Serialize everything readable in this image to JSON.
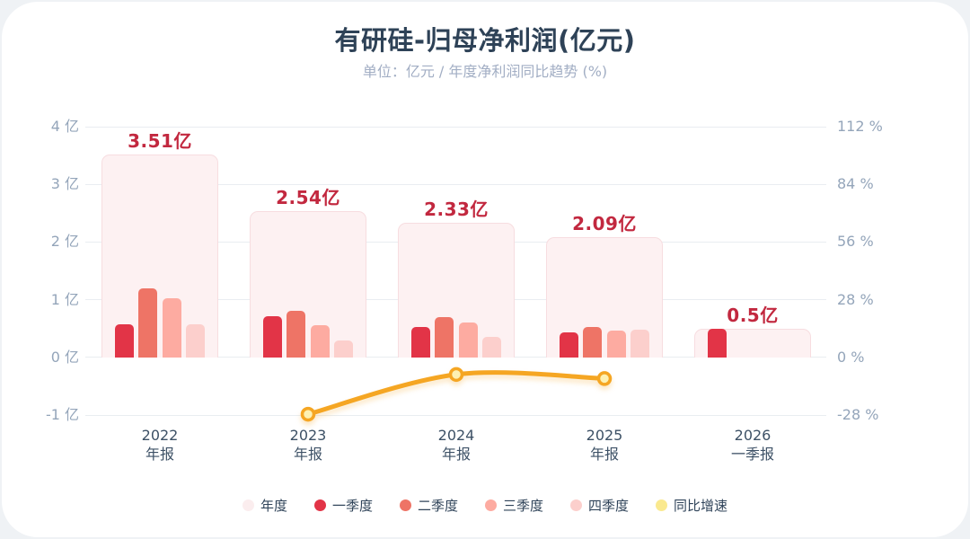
{
  "page": {
    "title": "有研硅-归母净利润(亿元)",
    "subtitle": "单位：亿元 / 年度净利润同比趋势 (%)"
  },
  "colors": {
    "title_text": "#2e4257",
    "subtitle_text": "#a2aec4",
    "axis_text": "#94a5ba",
    "x_axis_text": "#3d5166",
    "value_label": "#c2283f",
    "grid": "#e9edf1",
    "annual_fill": "#fdf1f2",
    "annual_border": "#f7dde0",
    "q1": "#e23447",
    "q2": "#ee7466",
    "q3": "#fdaba1",
    "q4": "#fccfcc",
    "trend_line": "#f5a623",
    "trend_marker_fill": "#fdf1b3",
    "legend_text": "#30445a"
  },
  "chart_data": {
    "type": "bar",
    "title": "有研硅-归母净利润(亿元)",
    "subtitle": "单位：亿元 / 年度净利润同比趋势 (%)",
    "categories": [
      [
        "2022",
        "年报"
      ],
      [
        "2023",
        "年报"
      ],
      [
        "2024",
        "年报"
      ],
      [
        "2025",
        "年报"
      ],
      [
        "2026",
        "一季报"
      ]
    ],
    "series": [
      {
        "key": "annual",
        "name": "年度",
        "type": "bar",
        "values": [
          3.51,
          2.54,
          2.33,
          2.09,
          0.5
        ],
        "data_labels": [
          "3.51亿",
          "2.54亿",
          "2.33亿",
          "2.09亿",
          "0.5亿"
        ],
        "color": "#fdf1f2"
      },
      {
        "key": "q1",
        "name": "一季度",
        "type": "bar",
        "values": [
          0.57,
          0.71,
          0.52,
          0.44,
          0.5
        ],
        "color": "#e23447"
      },
      {
        "key": "q2",
        "name": "二季度",
        "type": "bar",
        "values": [
          1.2,
          0.8,
          0.7,
          0.53,
          null
        ],
        "color": "#ee7466"
      },
      {
        "key": "q3",
        "name": "三季度",
        "type": "bar",
        "values": [
          1.02,
          0.56,
          0.61,
          0.46,
          null
        ],
        "color": "#fdaba1"
      },
      {
        "key": "q4",
        "name": "四季度",
        "type": "bar",
        "values": [
          0.58,
          0.29,
          0.35,
          0.48,
          null
        ],
        "color": "#fccfcc"
      },
      {
        "key": "yoy",
        "name": "同比增速",
        "type": "line",
        "y_axis": "right",
        "values": [
          null,
          -27.6,
          -8.3,
          -10.3,
          null
        ],
        "color": "#f5a623"
      }
    ],
    "left_axis": {
      "unit": "亿",
      "min": -1,
      "max": 4,
      "ticks": [
        4,
        3,
        2,
        1,
        0,
        -1
      ],
      "tick_labels": [
        "4 亿",
        "3 亿",
        "2 亿",
        "1 亿",
        "0 亿",
        "-1 亿"
      ]
    },
    "right_axis": {
      "unit": "%",
      "min": -28,
      "max": 112,
      "ticks": [
        112,
        84,
        56,
        28,
        0,
        -28
      ],
      "tick_labels": [
        "112 %",
        "84 %",
        "56 %",
        "28 %",
        "0 %",
        "-28 %"
      ]
    },
    "grid": true,
    "legend_position": "bottom",
    "legend": [
      {
        "key": "annual",
        "label": "年度",
        "swatch": "#fbedee"
      },
      {
        "key": "q1",
        "label": "一季度",
        "swatch": "#e23447"
      },
      {
        "key": "q2",
        "label": "二季度",
        "swatch": "#ee7466"
      },
      {
        "key": "q3",
        "label": "三季度",
        "swatch": "#fdaba1"
      },
      {
        "key": "q4",
        "label": "四季度",
        "swatch": "#fccfcc"
      },
      {
        "key": "yoy",
        "label": "同比增速",
        "swatch": "#fae98f"
      }
    ]
  }
}
